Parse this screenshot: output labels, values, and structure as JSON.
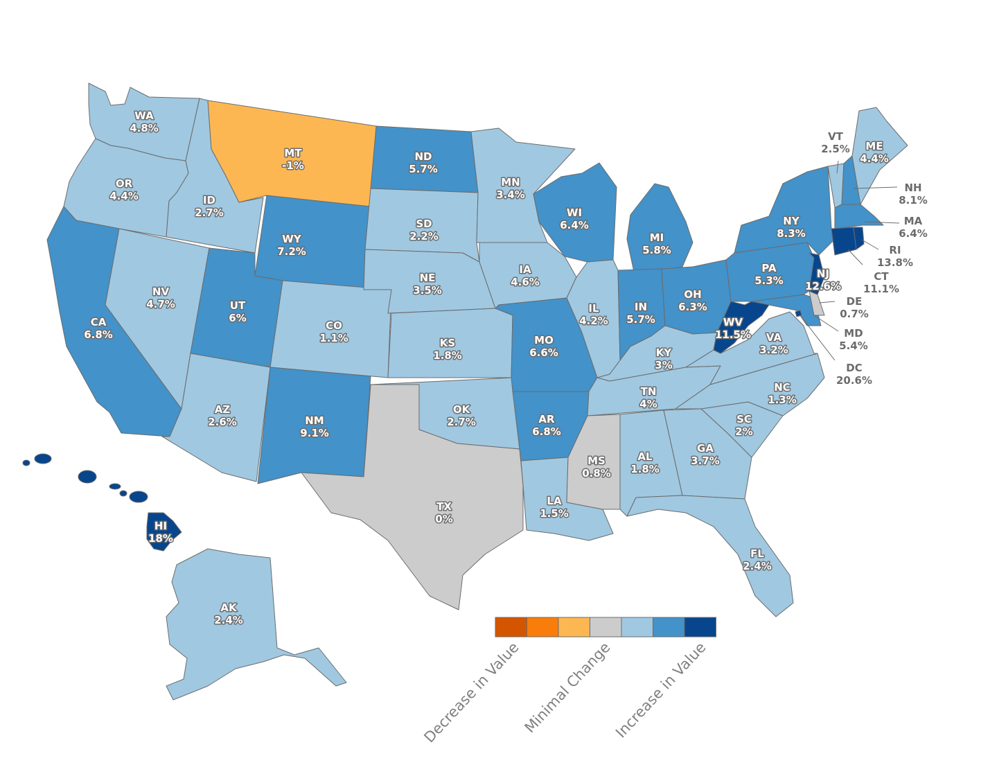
{
  "colors": {
    "decrease_strong": "#d45500",
    "decrease_mid": "#f97d0a",
    "decrease_light": "#fdb752",
    "minimal": "#cccccc",
    "increase_light": "#a0c8e1",
    "increase_mid": "#4392c9",
    "increase_strong": "#07468d",
    "border": "#6b6b6b",
    "legend_text": "#808080"
  },
  "states": {
    "WA": {
      "abbr": "WA",
      "value": "4.8%",
      "color": "#a0c8e1"
    },
    "OR": {
      "abbr": "OR",
      "value": "4.4%",
      "color": "#a0c8e1"
    },
    "CA": {
      "abbr": "CA",
      "value": "6.8%",
      "color": "#4392c9"
    },
    "ID": {
      "abbr": "ID",
      "value": "2.7%",
      "color": "#a0c8e1"
    },
    "NV": {
      "abbr": "NV",
      "value": "4.7%",
      "color": "#a0c8e1"
    },
    "MT": {
      "abbr": "MT",
      "value": "-1%",
      "color": "#fdb752"
    },
    "WY": {
      "abbr": "WY",
      "value": "7.2%",
      "color": "#4392c9"
    },
    "UT": {
      "abbr": "UT",
      "value": "6%",
      "color": "#4392c9"
    },
    "AZ": {
      "abbr": "AZ",
      "value": "2.6%",
      "color": "#a0c8e1"
    },
    "CO": {
      "abbr": "CO",
      "value": "1.1%",
      "color": "#a0c8e1"
    },
    "NM": {
      "abbr": "NM",
      "value": "9.1%",
      "color": "#4392c9"
    },
    "ND": {
      "abbr": "ND",
      "value": "5.7%",
      "color": "#4392c9"
    },
    "SD": {
      "abbr": "SD",
      "value": "2.2%",
      "color": "#a0c8e1"
    },
    "NE": {
      "abbr": "NE",
      "value": "3.5%",
      "color": "#a0c8e1"
    },
    "KS": {
      "abbr": "KS",
      "value": "1.8%",
      "color": "#a0c8e1"
    },
    "OK": {
      "abbr": "OK",
      "value": "2.7%",
      "color": "#a0c8e1"
    },
    "TX": {
      "abbr": "TX",
      "value": "0%",
      "color": "#cccccc"
    },
    "MN": {
      "abbr": "MN",
      "value": "3.4%",
      "color": "#a0c8e1"
    },
    "IA": {
      "abbr": "IA",
      "value": "4.6%",
      "color": "#a0c8e1"
    },
    "MO": {
      "abbr": "MO",
      "value": "6.6%",
      "color": "#4392c9"
    },
    "AR": {
      "abbr": "AR",
      "value": "6.8%",
      "color": "#4392c9"
    },
    "LA": {
      "abbr": "LA",
      "value": "1.5%",
      "color": "#a0c8e1"
    },
    "WI": {
      "abbr": "WI",
      "value": "6.4%",
      "color": "#4392c9"
    },
    "IL": {
      "abbr": "IL",
      "value": "4.2%",
      "color": "#a0c8e1"
    },
    "MI": {
      "abbr": "MI",
      "value": "5.8%",
      "color": "#4392c9"
    },
    "IN": {
      "abbr": "IN",
      "value": "5.7%",
      "color": "#4392c9"
    },
    "OH": {
      "abbr": "OH",
      "value": "6.3%",
      "color": "#4392c9"
    },
    "KY": {
      "abbr": "KY",
      "value": "3%",
      "color": "#a0c8e1"
    },
    "TN": {
      "abbr": "TN",
      "value": "4%",
      "color": "#a0c8e1"
    },
    "MS": {
      "abbr": "MS",
      "value": "0.8%",
      "color": "#cccccc"
    },
    "AL": {
      "abbr": "AL",
      "value": "1.8%",
      "color": "#a0c8e1"
    },
    "GA": {
      "abbr": "GA",
      "value": "3.7%",
      "color": "#a0c8e1"
    },
    "FL": {
      "abbr": "FL",
      "value": "2.4%",
      "color": "#a0c8e1"
    },
    "SC": {
      "abbr": "SC",
      "value": "2%",
      "color": "#a0c8e1"
    },
    "NC": {
      "abbr": "NC",
      "value": "1.3%",
      "color": "#a0c8e1"
    },
    "VA": {
      "abbr": "VA",
      "value": "3.2%",
      "color": "#a0c8e1"
    },
    "WV": {
      "abbr": "WV",
      "value": "11.5%",
      "color": "#07468d"
    },
    "PA": {
      "abbr": "PA",
      "value": "5.3%",
      "color": "#4392c9"
    },
    "NY": {
      "abbr": "NY",
      "value": "8.3%",
      "color": "#4392c9"
    },
    "VT": {
      "abbr": "VT",
      "value": "2.5%",
      "color": "#a0c8e1"
    },
    "NH": {
      "abbr": "NH",
      "value": "8.1%",
      "color": "#4392c9"
    },
    "ME": {
      "abbr": "ME",
      "value": "4.4%",
      "color": "#a0c8e1"
    },
    "MA": {
      "abbr": "MA",
      "value": "6.4%",
      "color": "#4392c9"
    },
    "RI": {
      "abbr": "RI",
      "value": "13.8%",
      "color": "#07468d"
    },
    "CT": {
      "abbr": "CT",
      "value": "11.1%",
      "color": "#07468d"
    },
    "NJ": {
      "abbr": "NJ",
      "value": "12.6%",
      "color": "#07468d"
    },
    "DE": {
      "abbr": "DE",
      "value": "0.7%",
      "color": "#cccccc"
    },
    "MD": {
      "abbr": "MD",
      "value": "5.4%",
      "color": "#4392c9"
    },
    "DC": {
      "abbr": "DC",
      "value": "20.6%",
      "color": "#07468d"
    },
    "AK": {
      "abbr": "AK",
      "value": "2.4%",
      "color": "#a0c8e1"
    },
    "HI": {
      "abbr": "HI",
      "value": "18%",
      "color": "#07468d"
    }
  },
  "legend": {
    "swatches": [
      "#d45500",
      "#f97d0a",
      "#fdb752",
      "#cccccc",
      "#a0c8e1",
      "#4392c9",
      "#07468d"
    ],
    "labels": {
      "decrease": "Decrease in Value",
      "minimal": "Minimal Change",
      "increase": "Increase in Value"
    }
  }
}
